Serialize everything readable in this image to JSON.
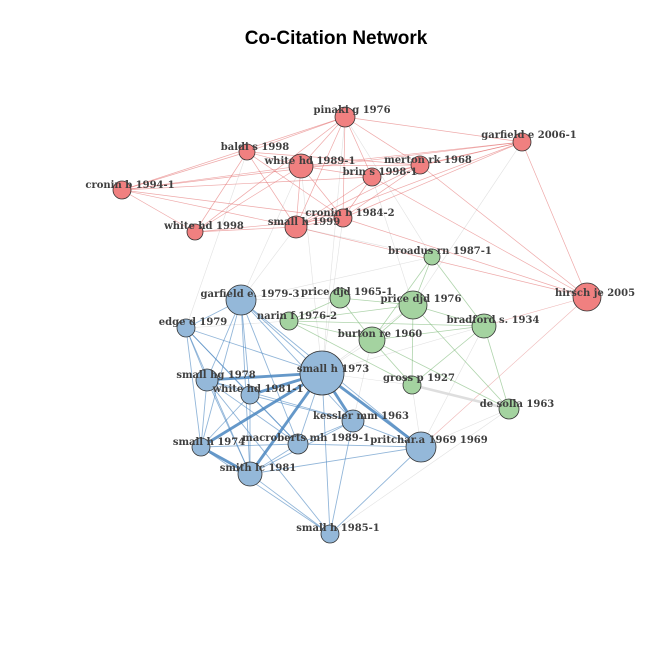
{
  "title": "Co-Citation Network",
  "colors": {
    "red": "#f08080",
    "blue": "#94b8d9",
    "green": "#a4d3a0",
    "stroke": "#333333"
  },
  "nodes": [
    {
      "id": "pinaki",
      "label": "pinaki g 1976",
      "cluster": "red"
    },
    {
      "id": "garfield2006",
      "label": "garfield e 2006-1",
      "cluster": "red"
    },
    {
      "id": "baldi",
      "label": "baldi s 1998",
      "cluster": "red"
    },
    {
      "id": "whitehd1989",
      "label": "white hd 1989-1",
      "cluster": "red"
    },
    {
      "id": "merton",
      "label": "merton rk 1968",
      "cluster": "red"
    },
    {
      "id": "brins",
      "label": "brin s 1998-1",
      "cluster": "red"
    },
    {
      "id": "cronin1994",
      "label": "cronin b 1994-1",
      "cluster": "red"
    },
    {
      "id": "cronin1984",
      "label": "cronin b 1984-2",
      "cluster": "red"
    },
    {
      "id": "whitehd1998",
      "label": "white hd 1998",
      "cluster": "red"
    },
    {
      "id": "smallh1999",
      "label": "small h 1999",
      "cluster": "red"
    },
    {
      "id": "hirsch",
      "label": "hirsch je 2005",
      "cluster": "red"
    },
    {
      "id": "broadus",
      "label": "broadus rn 1987-1",
      "cluster": "green"
    },
    {
      "id": "price1965",
      "label": "price djd 1965-1",
      "cluster": "green"
    },
    {
      "id": "price1976",
      "label": "price djd 1976",
      "cluster": "green"
    },
    {
      "id": "bradford",
      "label": "bradford s. 1934",
      "cluster": "green"
    },
    {
      "id": "narin",
      "label": "narin f 1976-2",
      "cluster": "green"
    },
    {
      "id": "burton",
      "label": "burton re 1960",
      "cluster": "green"
    },
    {
      "id": "gross",
      "label": "gross p 1927",
      "cluster": "green"
    },
    {
      "id": "desolla",
      "label": "de solla 1963",
      "cluster": "green"
    },
    {
      "id": "garfield1979",
      "label": "garfield e. 1979-3",
      "cluster": "blue"
    },
    {
      "id": "edge",
      "label": "edge d 1979",
      "cluster": "blue"
    },
    {
      "id": "smallh1973",
      "label": "small h 1973",
      "cluster": "blue"
    },
    {
      "id": "smallhg1978",
      "label": "small hg 1978",
      "cluster": "blue"
    },
    {
      "id": "whitehd1981",
      "label": "white hd 1981-1",
      "cluster": "blue"
    },
    {
      "id": "kessler",
      "label": "kessler mm 1963",
      "cluster": "blue"
    },
    {
      "id": "smallh1974",
      "label": "small h 1974",
      "cluster": "blue"
    },
    {
      "id": "macroberts",
      "label": "macroberts mh 1989-1",
      "cluster": "blue"
    },
    {
      "id": "pritchard",
      "label": "pritchar.a 1969 1969",
      "cluster": "blue"
    },
    {
      "id": "smith",
      "label": "smith lc 1981",
      "cluster": "blue"
    },
    {
      "id": "smallh1985",
      "label": "small h 1985-1",
      "cluster": "blue"
    }
  ],
  "edges": [
    [
      "pinaki",
      "garfield2006"
    ],
    [
      "pinaki",
      "baldi"
    ],
    [
      "pinaki",
      "whitehd1989"
    ],
    [
      "pinaki",
      "merton"
    ],
    [
      "pinaki",
      "brins"
    ],
    [
      "pinaki",
      "cronin1994"
    ],
    [
      "pinaki",
      "cronin1984"
    ],
    [
      "pinaki",
      "whitehd1998"
    ],
    [
      "pinaki",
      "smallh1999"
    ],
    [
      "garfield2006",
      "hirsch"
    ],
    [
      "garfield2006",
      "whitehd1989"
    ],
    [
      "garfield2006",
      "cronin1994"
    ],
    [
      "garfield2006",
      "smallh1999"
    ],
    [
      "garfield2006",
      "merton"
    ],
    [
      "garfield2006",
      "brins"
    ],
    [
      "garfield2006",
      "cronin1984"
    ],
    [
      "baldi",
      "whitehd1989"
    ],
    [
      "baldi",
      "cronin1984"
    ],
    [
      "baldi",
      "smallh1999"
    ],
    [
      "baldi",
      "whitehd1998"
    ],
    [
      "baldi",
      "cronin1994"
    ],
    [
      "baldi",
      "merton"
    ],
    [
      "whitehd1989",
      "brins"
    ],
    [
      "whitehd1989",
      "merton"
    ],
    [
      "whitehd1989",
      "cronin1984"
    ],
    [
      "whitehd1989",
      "smallh1999"
    ],
    [
      "whitehd1989",
      "whitehd1998"
    ],
    [
      "whitehd1989",
      "cronin1994"
    ],
    [
      "merton",
      "cronin1984"
    ],
    [
      "merton",
      "smallh1999"
    ],
    [
      "merton",
      "brins"
    ],
    [
      "brins",
      "cronin1984"
    ],
    [
      "brins",
      "smallh1999"
    ],
    [
      "cronin1994",
      "whitehd1998"
    ],
    [
      "cronin1994",
      "smallh1999"
    ],
    [
      "cronin1994",
      "cronin1984"
    ],
    [
      "cronin1994",
      "brins"
    ],
    [
      "whitehd1998",
      "smallh1999"
    ],
    [
      "whitehd1998",
      "cronin1984"
    ],
    [
      "smallh1999",
      "cronin1984"
    ],
    [
      "smallh1999",
      "hirsch"
    ],
    [
      "cronin1984",
      "hirsch"
    ],
    [
      "merton",
      "hirsch"
    ],
    [
      "brins",
      "hirsch"
    ],
    [
      "garfield1979",
      "edge"
    ],
    [
      "garfield1979",
      "smallh1973"
    ],
    [
      "garfield1979",
      "smallhg1978"
    ],
    [
      "garfield1979",
      "whitehd1981"
    ],
    [
      "garfield1979",
      "smallh1974"
    ],
    [
      "garfield1979",
      "smith"
    ],
    [
      "garfield1979",
      "kessler"
    ],
    [
      "garfield1979",
      "macroberts"
    ],
    [
      "garfield1979",
      "pritchard"
    ],
    [
      "edge",
      "smallh1973"
    ],
    [
      "edge",
      "smallhg1978"
    ],
    [
      "edge",
      "whitehd1981"
    ],
    [
      "edge",
      "smallh1974"
    ],
    [
      "edge",
      "smith"
    ],
    [
      "edge",
      "macroberts"
    ],
    [
      "smallh1973",
      "smallhg1978"
    ],
    [
      "smallh1973",
      "whitehd1981"
    ],
    [
      "smallh1973",
      "kessler"
    ],
    [
      "smallh1973",
      "smallh1974"
    ],
    [
      "smallh1973",
      "macroberts"
    ],
    [
      "smallh1973",
      "pritchard"
    ],
    [
      "smallh1973",
      "smith"
    ],
    [
      "smallh1973",
      "smallh1985"
    ],
    [
      "smallhg1978",
      "whitehd1981"
    ],
    [
      "smallhg1978",
      "smallh1974"
    ],
    [
      "smallhg1978",
      "smith"
    ],
    [
      "smallhg1978",
      "macroberts"
    ],
    [
      "smallhg1978",
      "kessler"
    ],
    [
      "whitehd1981",
      "smallh1974"
    ],
    [
      "whitehd1981",
      "smith"
    ],
    [
      "whitehd1981",
      "macroberts"
    ],
    [
      "whitehd1981",
      "kessler"
    ],
    [
      "kessler",
      "macroberts"
    ],
    [
      "kessler",
      "pritchard"
    ],
    [
      "kessler",
      "smith"
    ],
    [
      "smallh1974",
      "smith"
    ],
    [
      "smallh1974",
      "macroberts"
    ],
    [
      "macroberts",
      "smith"
    ],
    [
      "macroberts",
      "pritchard"
    ],
    [
      "pritchard",
      "smith"
    ],
    [
      "smith",
      "smallh1985"
    ],
    [
      "smallh1974",
      "smallh1985"
    ],
    [
      "kessler",
      "smallh1985"
    ],
    [
      "pritchard",
      "smallh1985"
    ],
    [
      "smallhg1978",
      "smallh1985"
    ],
    [
      "broadus",
      "price1976"
    ],
    [
      "broadus",
      "bradford"
    ],
    [
      "broadus",
      "burton"
    ],
    [
      "price1965",
      "price1976"
    ],
    [
      "price1965",
      "burton"
    ],
    [
      "price1965",
      "narin"
    ],
    [
      "price1976",
      "bradford"
    ],
    [
      "price1976",
      "burton"
    ],
    [
      "price1976",
      "gross"
    ],
    [
      "price1976",
      "narin"
    ],
    [
      "price1976",
      "desolla"
    ],
    [
      "bradford",
      "burton"
    ],
    [
      "bradford",
      "gross"
    ],
    [
      "bradford",
      "desolla"
    ],
    [
      "narin",
      "burton"
    ],
    [
      "narin",
      "gross"
    ],
    [
      "burton",
      "gross"
    ],
    [
      "burton",
      "desolla"
    ],
    [
      "gross",
      "desolla"
    ],
    [
      "narin",
      "bradford"
    ]
  ],
  "cross_edges": [
    [
      "smallh1999",
      "garfield1979"
    ],
    [
      "whitehd1989",
      "smallh1973"
    ],
    [
      "pinaki",
      "smallh1973"
    ],
    [
      "garfield2006",
      "price1976"
    ],
    [
      "brins",
      "price1976"
    ],
    [
      "smallh1973",
      "price1976"
    ],
    [
      "smallh1973",
      "bradford"
    ],
    [
      "smallh1973",
      "gross"
    ],
    [
      "pritchard",
      "bradford"
    ],
    [
      "pritchard",
      "gross"
    ],
    [
      "pritchard",
      "desolla"
    ],
    [
      "smallh1973",
      "burton"
    ],
    [
      "garfield1979",
      "price1965"
    ],
    [
      "edge",
      "narin"
    ],
    [
      "whitehd1989",
      "garfield1979"
    ],
    [
      "cronin1984",
      "smallh1973"
    ],
    [
      "garfield1979",
      "broadus"
    ],
    [
      "kessler",
      "burton"
    ],
    [
      "smallh1985",
      "desolla"
    ],
    [
      "baldi",
      "edge"
    ],
    [
      "hirsch",
      "pritchard"
    ],
    [
      "hirsch",
      "bradford"
    ],
    [
      "broadus",
      "smallh1999"
    ],
    [
      "pinaki",
      "broadus"
    ]
  ],
  "highlight_edges": [
    [
      "smallh1973",
      "smallhg1978"
    ],
    [
      "smallh1973",
      "smallh1974"
    ],
    [
      "smallh1973",
      "smith"
    ],
    [
      "smallh1973",
      "kessler"
    ],
    [
      "smallh1973",
      "pritchard"
    ],
    [
      "smallh1974",
      "smith"
    ],
    [
      "smallh1973",
      "whitehd1981"
    ],
    [
      "gross",
      "desolla"
    ]
  ]
}
